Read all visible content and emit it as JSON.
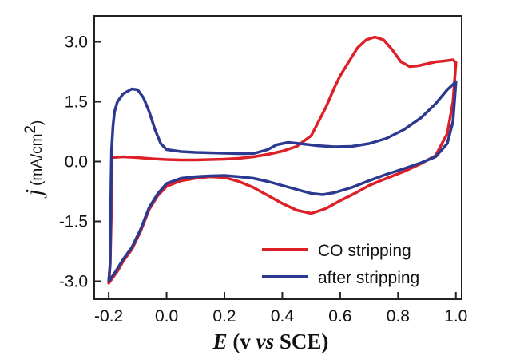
{
  "chart_data": {
    "type": "line",
    "title": "",
    "xlabel": {
      "var": "E",
      "open": " (v ",
      "vs": "vs",
      "close": " SCE)"
    },
    "ylabel": {
      "var": "j",
      "unit": "(mA/cm",
      "exp": "2",
      "close": ")"
    },
    "xlim": [
      -0.25,
      1.02
    ],
    "ylim": [
      -3.45,
      3.65
    ],
    "xticks": [
      -0.2,
      0.0,
      0.2,
      0.4,
      0.6,
      0.8,
      1.0
    ],
    "xtick_labels": [
      "-0.2",
      "0.0",
      "0.2",
      "0.4",
      "0.6",
      "0.8",
      "1.0"
    ],
    "yticks": [
      -3.0,
      -1.5,
      0.0,
      1.5,
      3.0
    ],
    "ytick_labels": [
      "-3.0",
      "-1.5",
      "0.0",
      "1.5",
      "3.0"
    ],
    "grid": false,
    "legend_position": "bottom-right",
    "series": [
      {
        "name": "CO stripping",
        "color": "#dd2027",
        "points": [
          [
            -0.19,
            0.1
          ],
          [
            -0.15,
            0.12
          ],
          [
            -0.1,
            0.1
          ],
          [
            -0.05,
            0.07
          ],
          [
            0.0,
            0.05
          ],
          [
            0.05,
            0.04
          ],
          [
            0.1,
            0.04
          ],
          [
            0.15,
            0.05
          ],
          [
            0.2,
            0.06
          ],
          [
            0.25,
            0.08
          ],
          [
            0.3,
            0.12
          ],
          [
            0.35,
            0.18
          ],
          [
            0.4,
            0.26
          ],
          [
            0.45,
            0.38
          ],
          [
            0.5,
            0.65
          ],
          [
            0.55,
            1.35
          ],
          [
            0.58,
            1.85
          ],
          [
            0.6,
            2.15
          ],
          [
            0.63,
            2.5
          ],
          [
            0.66,
            2.85
          ],
          [
            0.69,
            3.05
          ],
          [
            0.72,
            3.12
          ],
          [
            0.75,
            3.05
          ],
          [
            0.78,
            2.8
          ],
          [
            0.81,
            2.5
          ],
          [
            0.84,
            2.38
          ],
          [
            0.87,
            2.4
          ],
          [
            0.9,
            2.45
          ],
          [
            0.93,
            2.5
          ],
          [
            0.96,
            2.52
          ],
          [
            0.99,
            2.55
          ],
          [
            1.0,
            2.48
          ],
          [
            0.99,
            1.5
          ],
          [
            0.97,
            0.7
          ],
          [
            0.93,
            0.15
          ],
          [
            0.88,
            -0.05
          ],
          [
            0.82,
            -0.25
          ],
          [
            0.75,
            -0.45
          ],
          [
            0.7,
            -0.6
          ],
          [
            0.65,
            -0.8
          ],
          [
            0.6,
            -0.98
          ],
          [
            0.55,
            -1.18
          ],
          [
            0.5,
            -1.3
          ],
          [
            0.45,
            -1.22
          ],
          [
            0.4,
            -1.05
          ],
          [
            0.35,
            -0.85
          ],
          [
            0.3,
            -0.65
          ],
          [
            0.25,
            -0.5
          ],
          [
            0.2,
            -0.4
          ],
          [
            0.15,
            -0.38
          ],
          [
            0.1,
            -0.42
          ],
          [
            0.05,
            -0.48
          ],
          [
            0.0,
            -0.62
          ],
          [
            -0.03,
            -0.85
          ],
          [
            -0.06,
            -1.2
          ],
          [
            -0.09,
            -1.75
          ],
          [
            -0.12,
            -2.2
          ],
          [
            -0.15,
            -2.5
          ],
          [
            -0.17,
            -2.75
          ],
          [
            -0.2,
            -3.05
          ],
          [
            -0.195,
            -2.6
          ],
          [
            -0.19,
            -1.0
          ],
          [
            -0.19,
            0.1
          ]
        ]
      },
      {
        "name": "after stripping",
        "color": "#2b3990",
        "points": [
          [
            -0.195,
            -2.55
          ],
          [
            -0.192,
            -0.5
          ],
          [
            -0.19,
            0.3
          ],
          [
            -0.185,
            0.9
          ],
          [
            -0.18,
            1.25
          ],
          [
            -0.17,
            1.5
          ],
          [
            -0.15,
            1.7
          ],
          [
            -0.12,
            1.82
          ],
          [
            -0.1,
            1.8
          ],
          [
            -0.08,
            1.6
          ],
          [
            -0.06,
            1.25
          ],
          [
            -0.04,
            0.8
          ],
          [
            -0.02,
            0.45
          ],
          [
            0.0,
            0.3
          ],
          [
            0.05,
            0.25
          ],
          [
            0.1,
            0.23
          ],
          [
            0.15,
            0.22
          ],
          [
            0.2,
            0.21
          ],
          [
            0.25,
            0.2
          ],
          [
            0.3,
            0.2
          ],
          [
            0.35,
            0.3
          ],
          [
            0.38,
            0.42
          ],
          [
            0.42,
            0.48
          ],
          [
            0.46,
            0.45
          ],
          [
            0.52,
            0.4
          ],
          [
            0.58,
            0.37
          ],
          [
            0.64,
            0.38
          ],
          [
            0.7,
            0.45
          ],
          [
            0.76,
            0.58
          ],
          [
            0.82,
            0.8
          ],
          [
            0.88,
            1.1
          ],
          [
            0.93,
            1.45
          ],
          [
            0.97,
            1.8
          ],
          [
            1.0,
            2.0
          ],
          [
            0.99,
            1.0
          ],
          [
            0.97,
            0.45
          ],
          [
            0.93,
            0.12
          ],
          [
            0.88,
            -0.03
          ],
          [
            0.82,
            -0.18
          ],
          [
            0.76,
            -0.32
          ],
          [
            0.7,
            -0.48
          ],
          [
            0.64,
            -0.65
          ],
          [
            0.58,
            -0.78
          ],
          [
            0.54,
            -0.83
          ],
          [
            0.5,
            -0.8
          ],
          [
            0.45,
            -0.7
          ],
          [
            0.4,
            -0.6
          ],
          [
            0.35,
            -0.5
          ],
          [
            0.3,
            -0.42
          ],
          [
            0.25,
            -0.38
          ],
          [
            0.2,
            -0.35
          ],
          [
            0.15,
            -0.36
          ],
          [
            0.1,
            -0.38
          ],
          [
            0.05,
            -0.42
          ],
          [
            0.0,
            -0.55
          ],
          [
            -0.03,
            -0.8
          ],
          [
            -0.06,
            -1.15
          ],
          [
            -0.09,
            -1.7
          ],
          [
            -0.12,
            -2.15
          ],
          [
            -0.15,
            -2.45
          ],
          [
            -0.18,
            -2.8
          ],
          [
            -0.2,
            -3.0
          ],
          [
            -0.195,
            -2.55
          ]
        ]
      }
    ]
  }
}
